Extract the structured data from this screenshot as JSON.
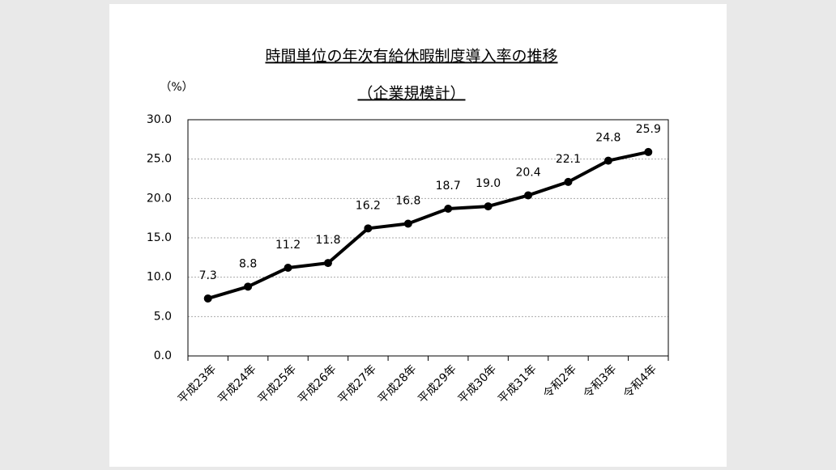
{
  "chart_data": {
    "type": "line",
    "title": "時間単位の年次有給休暇制度導入率の推移",
    "subtitle": "（企業規模計）",
    "y_label": "（%）",
    "categories": [
      "平成23年",
      "平成24年",
      "平成25年",
      "平成26年",
      "平成27年",
      "平成28年",
      "平成29年",
      "平成30年",
      "平成31年",
      "令和2年",
      "令和3年",
      "令和4年"
    ],
    "values": [
      7.3,
      8.8,
      11.2,
      11.8,
      16.2,
      16.8,
      18.7,
      19.0,
      20.4,
      22.1,
      24.8,
      25.9
    ],
    "value_labels": [
      "7.3",
      "8.8",
      "11.2",
      "11.8",
      "16.2",
      "16.8",
      "18.7",
      "19.0",
      "20.4",
      "22.1",
      "24.8",
      "25.9"
    ],
    "color": "#000000",
    "ylim": [
      0,
      30
    ],
    "yticks": [
      {
        "value": 0,
        "label": "0.0"
      },
      {
        "value": 5,
        "label": "5.0"
      },
      {
        "value": 10,
        "label": "10.0"
      },
      {
        "value": 15,
        "label": "15.0"
      },
      {
        "value": 20,
        "label": "20.0"
      },
      {
        "value": 25,
        "label": "25.0"
      },
      {
        "value": 30,
        "label": "30.0"
      }
    ],
    "grid": true
  }
}
